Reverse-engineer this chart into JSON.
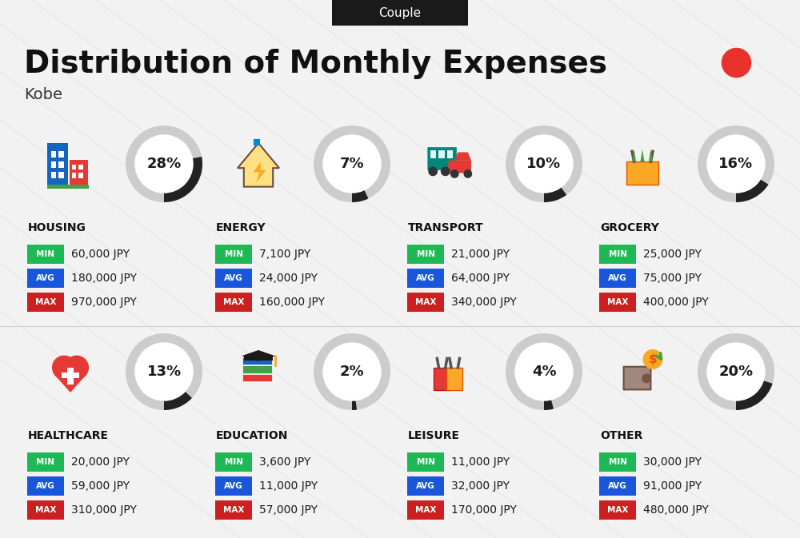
{
  "title": "Distribution of Monthly Expenses",
  "subtitle": "Kobe",
  "header_label": "Couple",
  "background_color": "#f2f2f2",
  "header_bg": "#1a1a1a",
  "header_text_color": "#ffffff",
  "title_color": "#111111",
  "subtitle_color": "#333333",
  "red_dot_color": "#e8312a",
  "categories": [
    {
      "name": "HOUSING",
      "pct": 28,
      "min_val": "60,000 JPY",
      "avg_val": "180,000 JPY",
      "max_val": "970,000 JPY",
      "row": 0,
      "col": 0
    },
    {
      "name": "ENERGY",
      "pct": 7,
      "min_val": "7,100 JPY",
      "avg_val": "24,000 JPY",
      "max_val": "160,000 JPY",
      "row": 0,
      "col": 1
    },
    {
      "name": "TRANSPORT",
      "pct": 10,
      "min_val": "21,000 JPY",
      "avg_val": "64,000 JPY",
      "max_val": "340,000 JPY",
      "row": 0,
      "col": 2
    },
    {
      "name": "GROCERY",
      "pct": 16,
      "min_val": "25,000 JPY",
      "avg_val": "75,000 JPY",
      "max_val": "400,000 JPY",
      "row": 0,
      "col": 3
    },
    {
      "name": "HEALTHCARE",
      "pct": 13,
      "min_val": "20,000 JPY",
      "avg_val": "59,000 JPY",
      "max_val": "310,000 JPY",
      "row": 1,
      "col": 0
    },
    {
      "name": "EDUCATION",
      "pct": 2,
      "min_val": "3,600 JPY",
      "avg_val": "11,000 JPY",
      "max_val": "57,000 JPY",
      "row": 1,
      "col": 1
    },
    {
      "name": "LEISURE",
      "pct": 4,
      "min_val": "11,000 JPY",
      "avg_val": "32,000 JPY",
      "max_val": "170,000 JPY",
      "row": 1,
      "col": 2
    },
    {
      "name": "OTHER",
      "pct": 20,
      "min_val": "30,000 JPY",
      "avg_val": "91,000 JPY",
      "max_val": "480,000 JPY",
      "row": 1,
      "col": 3
    }
  ],
  "min_color": "#1db954",
  "avg_color": "#1a56db",
  "max_color": "#cc1f1f",
  "value_text_color": "#1a1a1a",
  "circle_dark": "#222222",
  "circle_light": "#cccccc",
  "cat_name_color": "#111111",
  "diagonal_line_color": "#c8c8c8",
  "icon_colors": {
    "HOUSING": [
      "#1565c0",
      "#e53935",
      "#43a047"
    ],
    "ENERGY": [
      "#f9a825",
      "#0288d1",
      "#6d4c41"
    ],
    "TRANSPORT": [
      "#00897b",
      "#e53935"
    ],
    "GROCERY": [
      "#f9a825",
      "#43a047"
    ],
    "HEALTHCARE": [
      "#e53935",
      "#f48fb1"
    ],
    "EDUCATION": [
      "#1565c0",
      "#43a047",
      "#f9a825"
    ],
    "LEISURE": [
      "#e53935",
      "#f9a825"
    ],
    "OTHER": [
      "#a1887f",
      "#f9a825",
      "#43a047"
    ]
  }
}
